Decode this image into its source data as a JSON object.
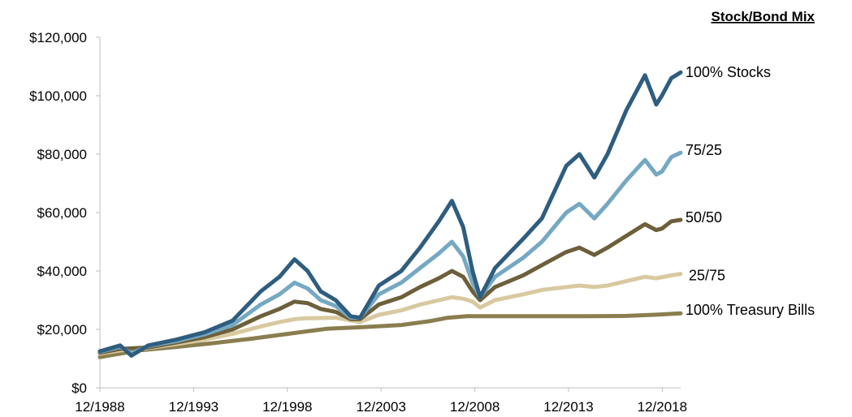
{
  "chart_data": {
    "type": "line",
    "title": "",
    "legend_title": "Stock/Bond Mix",
    "xlabel": "",
    "ylabel": "",
    "x_tick_labels": [
      "12/1988",
      "12/1993",
      "12/1998",
      "12/2003",
      "12/2008",
      "12/2013",
      "12/2018"
    ],
    "y_tick_labels": [
      "$0",
      "$20,000",
      "$40,000",
      "$60,000",
      "$80,000",
      "$100,000",
      "$120,000"
    ],
    "xlim": [
      1988.92,
      2019.9
    ],
    "ylim": [
      0,
      120000
    ],
    "grid": false,
    "legend_placement": "right, labels at line ends",
    "series": [
      {
        "name": "100% Stocks",
        "color": "#2e5d7f",
        "x": [
          1988.92,
          1990.0,
          1990.6,
          1991.5,
          1993.0,
          1994.5,
          1996.0,
          1997.5,
          1998.5,
          1999.3,
          2000.0,
          2000.7,
          2001.5,
          2002.3,
          2002.8,
          2003.8,
          2005.0,
          2006.0,
          2007.0,
          2007.7,
          2008.3,
          2008.8,
          2009.2,
          2010.0,
          2011.5,
          2012.5,
          2013.8,
          2014.5,
          2015.3,
          2016.0,
          2017.0,
          2018.0,
          2018.6,
          2018.9,
          2019.4,
          2019.9
        ],
        "values": [
          12500,
          14500,
          11000,
          14500,
          16500,
          19000,
          23000,
          33000,
          38000,
          44000,
          40000,
          33000,
          30000,
          24500,
          24000,
          35000,
          40000,
          48000,
          57000,
          64000,
          55000,
          40000,
          31000,
          41000,
          51000,
          58000,
          76000,
          80000,
          72000,
          80000,
          95000,
          107000,
          97000,
          100000,
          106000,
          108000
        ]
      },
      {
        "name": "75/25",
        "color": "#75a8c2",
        "x": [
          1988.92,
          1990.0,
          1990.6,
          1991.5,
          1993.0,
          1994.5,
          1996.0,
          1997.5,
          1998.5,
          1999.3,
          2000.0,
          2000.7,
          2001.5,
          2002.3,
          2002.8,
          2003.8,
          2005.0,
          2006.0,
          2007.0,
          2007.7,
          2008.3,
          2008.8,
          2009.2,
          2010.0,
          2011.5,
          2012.5,
          2013.8,
          2014.5,
          2015.3,
          2016.0,
          2017.0,
          2018.0,
          2018.6,
          2018.9,
          2019.4,
          2019.9
        ],
        "values": [
          12300,
          14000,
          11800,
          14300,
          16000,
          18300,
          21500,
          28500,
          32000,
          36000,
          34000,
          30000,
          28000,
          24000,
          24000,
          32000,
          36000,
          41000,
          46000,
          50000,
          45000,
          36000,
          31000,
          38000,
          44500,
          50000,
          60000,
          63000,
          58000,
          63000,
          71000,
          78000,
          73000,
          74000,
          79000,
          80500
        ]
      },
      {
        "name": "50/50",
        "color": "#6d5f3a",
        "x": [
          1988.92,
          1990.0,
          1991.5,
          1993.0,
          1994.5,
          1996.0,
          1997.5,
          1998.5,
          1999.3,
          2000.0,
          2000.7,
          2001.5,
          2002.3,
          2002.8,
          2003.8,
          2005.0,
          2006.0,
          2007.0,
          2007.7,
          2008.3,
          2008.8,
          2009.2,
          2010.0,
          2011.5,
          2012.5,
          2013.8,
          2014.5,
          2015.3,
          2016.0,
          2017.0,
          2018.0,
          2018.6,
          2018.9,
          2019.4,
          2019.9
        ],
        "values": [
          12000,
          13300,
          13800,
          15500,
          17300,
          20000,
          24500,
          27000,
          29500,
          29000,
          27000,
          26000,
          23500,
          23500,
          28500,
          31000,
          34500,
          37500,
          40000,
          38000,
          33000,
          30000,
          34500,
          38500,
          42000,
          46500,
          48000,
          45500,
          48000,
          52000,
          56000,
          54000,
          54500,
          57000,
          57500
        ]
      },
      {
        "name": "25/75",
        "color": "#d8c9a0",
        "x": [
          1988.92,
          1990.0,
          1991.5,
          1993.0,
          1994.5,
          1996.0,
          1997.5,
          1998.5,
          1999.3,
          2000.0,
          2001.5,
          2002.8,
          2003.8,
          2005.0,
          2006.0,
          2007.0,
          2007.7,
          2008.3,
          2008.8,
          2009.2,
          2010.0,
          2011.5,
          2012.5,
          2013.8,
          2014.5,
          2015.3,
          2016.0,
          2017.0,
          2018.0,
          2018.6,
          2019.4,
          2019.9
        ],
        "values": [
          11700,
          12800,
          13600,
          15000,
          16500,
          18500,
          21000,
          22500,
          23500,
          23800,
          24000,
          22500,
          25000,
          26500,
          28500,
          30000,
          31000,
          30500,
          29500,
          27500,
          30000,
          32000,
          33500,
          34500,
          35000,
          34500,
          35000,
          36500,
          38000,
          37500,
          38500,
          39000
        ]
      },
      {
        "name": "100% Treasury Bills",
        "color": "#8a7d4f",
        "x": [
          1988.92,
          1991.0,
          1993.0,
          1995.0,
          1997.0,
          1999.0,
          2001.0,
          2003.0,
          2005.0,
          2006.5,
          2007.5,
          2008.5,
          2009.5,
          2012.0,
          2015.0,
          2017.0,
          2018.5,
          2019.9
        ],
        "values": [
          10500,
          12800,
          14000,
          15300,
          16800,
          18500,
          20200,
          20800,
          21500,
          22800,
          24000,
          24500,
          24500,
          24500,
          24500,
          24600,
          25000,
          25500
        ]
      }
    ]
  }
}
